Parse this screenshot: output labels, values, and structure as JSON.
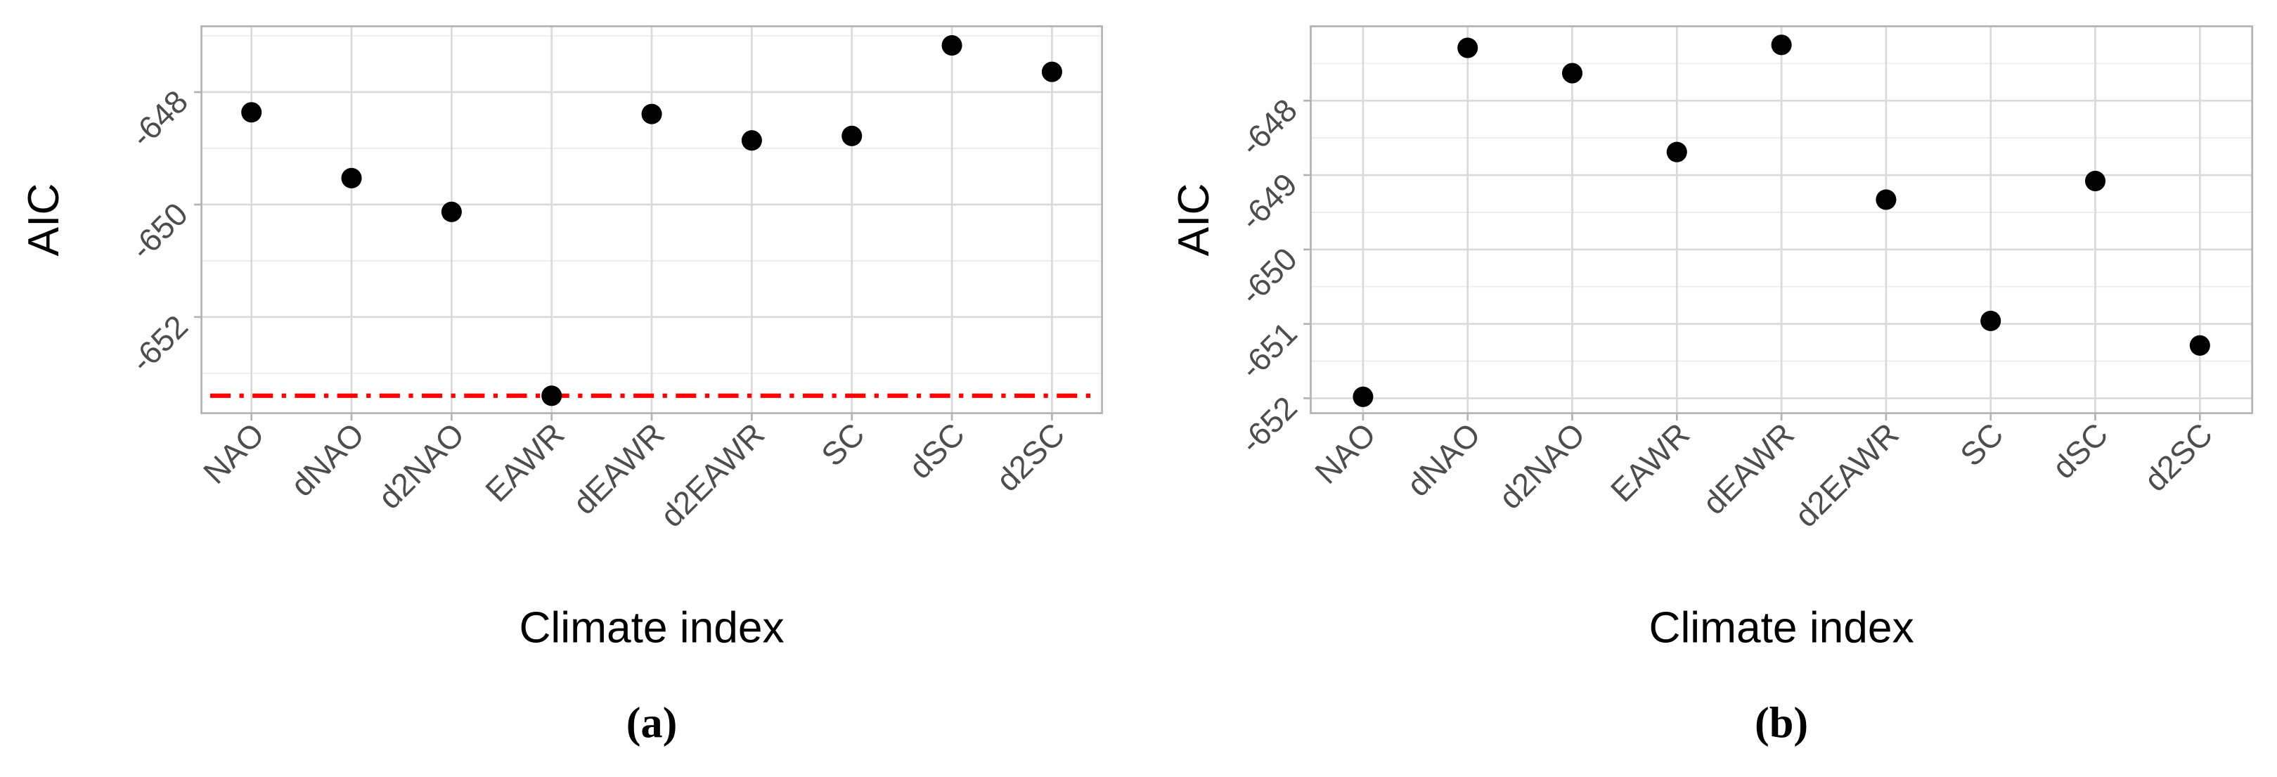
{
  "chart_data": [
    {
      "type": "scatter",
      "xlabel": "Climate index",
      "ylabel": "AIC",
      "caption": "(a)",
      "categories": [
        "NAO",
        "dNAO",
        "d2NAO",
        "EAWR",
        "dEAWR",
        "d2EAWR",
        "SC",
        "dSC",
        "d2SC"
      ],
      "values": [
        -648.36,
        -649.53,
        -650.13,
        -653.4,
        -648.39,
        -648.86,
        -648.78,
        -647.17,
        -647.64
      ],
      "color": "#000000",
      "ylim": [
        -653.71,
        -646.83
      ],
      "yticks": [
        -648,
        -650,
        -652
      ],
      "grid": true,
      "reference_line": -653.4,
      "reference_line_color": "#ff0000"
    },
    {
      "type": "scatter",
      "xlabel": "Climate index",
      "ylabel": "AIC",
      "caption": "(b)",
      "categories": [
        "NAO",
        "dNAO",
        "d2NAO",
        "EAWR",
        "dEAWR",
        "d2EAWR",
        "SC",
        "dSC",
        "d2SC"
      ],
      "values": [
        -651.98,
        -647.29,
        -647.63,
        -648.69,
        -647.25,
        -649.33,
        -650.96,
        -649.08,
        -651.29
      ],
      "color": "#000000",
      "ylim": [
        -652.2,
        -647.0
      ],
      "yticks": [
        -648,
        -649,
        -650,
        -651,
        -652
      ],
      "grid": true
    }
  ]
}
